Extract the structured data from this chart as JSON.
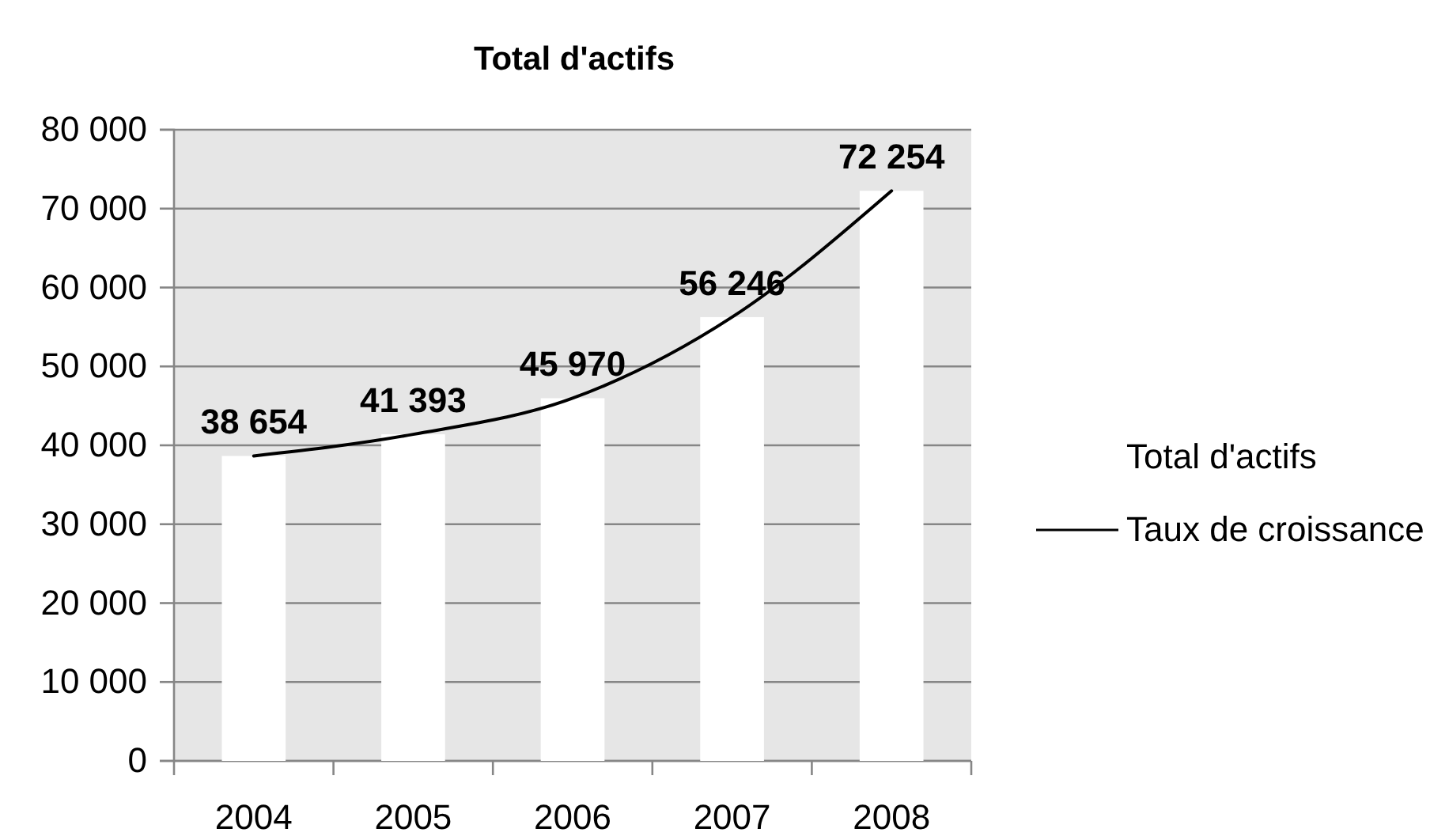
{
  "chart_data": {
    "type": "bar",
    "title": "Total d'actifs",
    "categories": [
      "2004",
      "2005",
      "2006",
      "2007",
      "2008"
    ],
    "series": [
      {
        "name": "Total d'actifs",
        "color": "#ffffff",
        "values": [
          38654,
          41393,
          45970,
          56246,
          72254
        ],
        "value_labels": [
          "38 654",
          "41 393",
          "45 970",
          "56 246",
          "72 254"
        ]
      },
      {
        "name": "Taux de croissance",
        "type": "line",
        "color": "#000000",
        "values": [
          38654,
          41393,
          45970,
          56246,
          72254
        ]
      }
    ],
    "ylim": [
      0,
      80000
    ],
    "yticks": [
      0,
      {
        "value": 10000,
        "label": "10 000"
      },
      {
        "value": 20000,
        "label": "20 000"
      },
      {
        "value": 30000,
        "label": "30 000"
      },
      {
        "value": 40000,
        "label": "40 000"
      },
      {
        "value": 50000,
        "label": "50 000"
      },
      {
        "value": 60000,
        "label": "60 000"
      },
      {
        "value": 70000,
        "label": "70 000"
      },
      {
        "value": 80000,
        "label": "80 000"
      }
    ],
    "grid": "y",
    "legend": "right"
  }
}
